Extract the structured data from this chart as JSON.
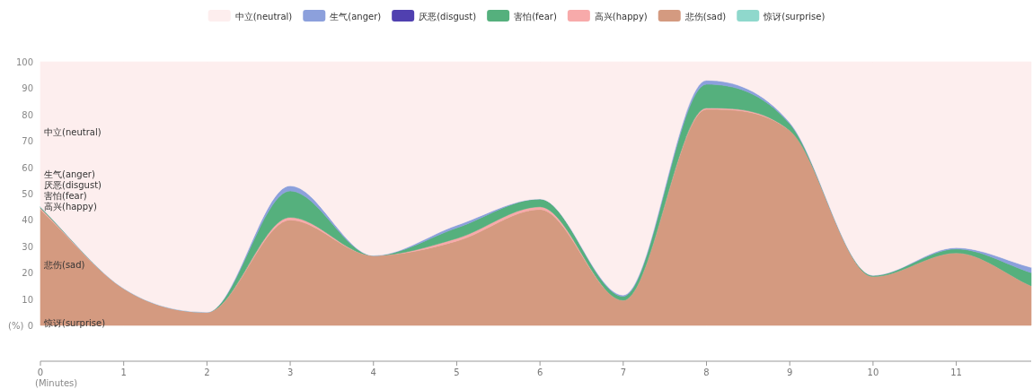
{
  "chart_data": {
    "type": "area",
    "stacked": true,
    "xlabel": "(Minutes)",
    "ylabel": "(%)",
    "legend": "top",
    "x": [
      0,
      1,
      2,
      3,
      4,
      5,
      6,
      7,
      8,
      9,
      10,
      11,
      11.9
    ],
    "xlim": [
      0,
      11.9
    ],
    "xticks": [
      0,
      1,
      2,
      3,
      4,
      5,
      6,
      7,
      8,
      9,
      10,
      11
    ],
    "ylim": [
      0,
      100
    ],
    "yticks": [
      0,
      10,
      20,
      30,
      40,
      50,
      60,
      70,
      80,
      90,
      100
    ],
    "series": [
      {
        "name": "惊讶(surprise)",
        "color": "#8fd8cc",
        "values": [
          null,
          null,
          null,
          null,
          null,
          null,
          null,
          null,
          null,
          null,
          null,
          null,
          null
        ]
      },
      {
        "name": "悲伤(sad)",
        "color": "#d49a80",
        "values": [
          44,
          14,
          5,
          40,
          26.5,
          32,
          44,
          9.5,
          82,
          74,
          18.5,
          27.5,
          15
        ]
      },
      {
        "name": "高兴(happy)",
        "color": "#f7aaaa",
        "values": [
          0.5,
          0,
          0,
          1,
          0,
          1,
          1,
          0,
          0.5,
          0,
          0,
          0,
          0
        ]
      },
      {
        "name": "害怕(fear)",
        "color": "#55b07d",
        "values": [
          0.5,
          0,
          0,
          10,
          0,
          4,
          3,
          1.5,
          9,
          2.5,
          0.5,
          1.5,
          5
        ]
      },
      {
        "name": "厌恶(disgust)",
        "color": "#5040b0",
        "values": [
          null,
          null,
          null,
          null,
          null,
          null,
          null,
          null,
          null,
          null,
          null,
          null,
          null
        ]
      },
      {
        "name": "生气(anger)",
        "color": "#8ca0dc",
        "values": [
          0,
          0,
          0,
          2,
          0,
          1,
          0,
          0.5,
          1.5,
          0.5,
          0,
          0.5,
          2
        ]
      },
      {
        "name": "中立(neutral)",
        "color": "#fdeeee",
        "values": [
          55,
          86,
          95,
          47,
          73.5,
          62,
          52,
          88.5,
          7,
          23,
          81,
          70.5,
          78
        ]
      }
    ]
  }
}
